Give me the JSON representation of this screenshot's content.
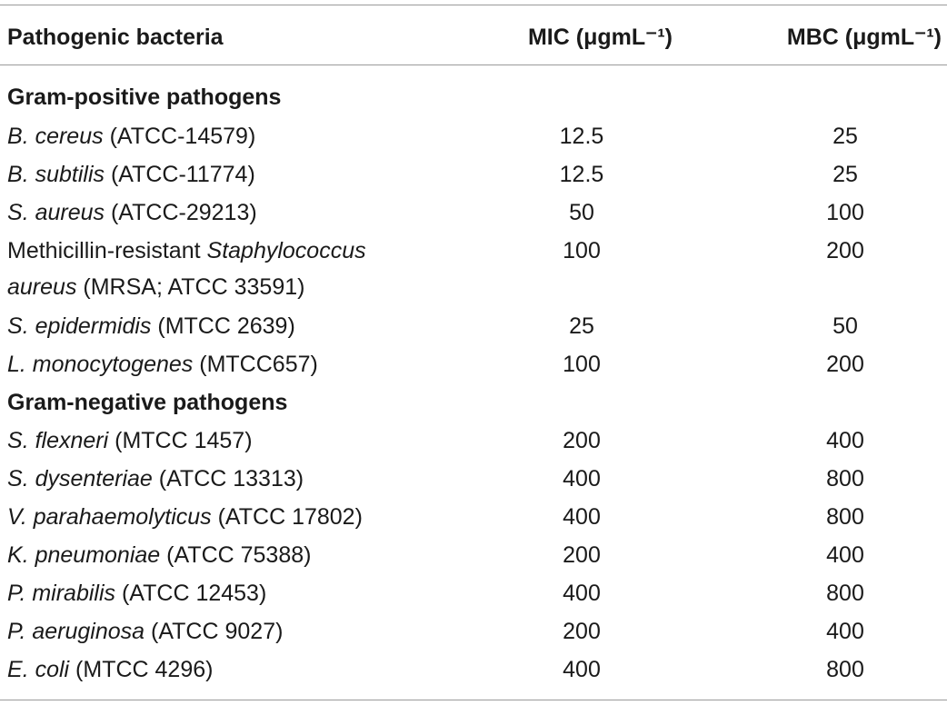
{
  "header": {
    "col_name": "Pathogenic bacteria",
    "col_mic": "MIC (μgmL⁻¹)",
    "col_mbc": "MBC (μgmL⁻¹)"
  },
  "sections": [
    {
      "title": "Gram-positive pathogens",
      "rows": [
        {
          "genus": "B",
          "species": ". cereus",
          "strain": " (ATCC-14579)",
          "mic": "12.5",
          "mbc": "25"
        },
        {
          "genus": "B",
          "species": ". subtilis",
          "strain": " (ATCC-11774)",
          "mic": "12.5",
          "mbc": "25"
        },
        {
          "genus": "S",
          "species": ". aureus",
          "strain": " (ATCC-29213)",
          "mic": "50",
          "mbc": "100"
        },
        {
          "prefix": "Methicillin-resistant ",
          "italic1": "Staphylococcus",
          "italic2": "aureus",
          "strain": " (MRSA; ATCC 33591)",
          "mic": "100",
          "mbc": "200"
        },
        {
          "genus": "S",
          "species": ". epidermidis",
          "strain": " (MTCC 2639)",
          "mic": "25",
          "mbc": "50"
        },
        {
          "genus": "L",
          "species": ". monocytogenes",
          "strain": " (MTCC657)",
          "mic": "100",
          "mbc": "200"
        }
      ]
    },
    {
      "title": "Gram-negative pathogens",
      "rows": [
        {
          "genus": "S",
          "species": ". flexneri",
          "strain": " (MTCC 1457)",
          "mic": "200",
          "mbc": "400"
        },
        {
          "genus": "S",
          "species": ". dysenteriae",
          "strain": " (ATCC 13313)",
          "mic": "400",
          "mbc": "800"
        },
        {
          "genus": "V",
          "species": ". parahaemolyticus",
          "strain": " (ATCC 17802)",
          "mic": "400",
          "mbc": "800"
        },
        {
          "genus": "K",
          "species": ". pneumoniae",
          "strain": " (ATCC 75388)",
          "mic": "200",
          "mbc": "400"
        },
        {
          "genus": "P",
          "species": ". mirabilis",
          "strain": " (ATCC 12453)",
          "mic": "400",
          "mbc": "800"
        },
        {
          "genus": "P",
          "species": ". aeruginosa",
          "strain": " (ATCC 9027)",
          "mic": "200",
          "mbc": "400"
        },
        {
          "genus": "E",
          "species": ". coli",
          "strain": " (MTCC 4296)",
          "mic": "400",
          "mbc": "800"
        }
      ]
    }
  ]
}
